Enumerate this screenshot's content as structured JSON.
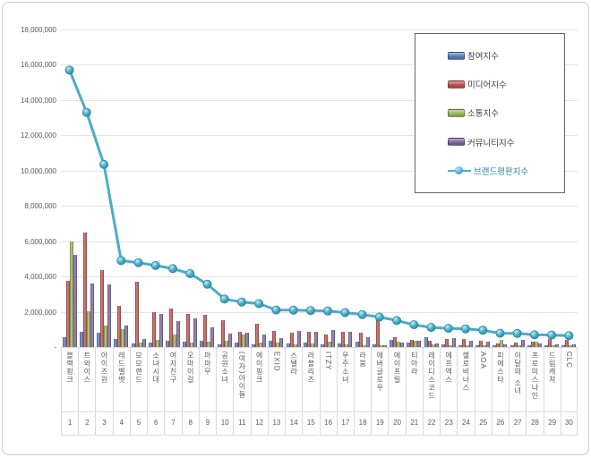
{
  "chart_data": {
    "type": "bar+line",
    "title": "",
    "xlabel": "",
    "ylabel": "",
    "ylim": [
      0,
      18000000
    ],
    "y_tick_interval": 2000000,
    "y_tick_labels": [
      "18,000,000",
      "16,000,000",
      "14,000,000",
      "12,000,000",
      "10,000,000",
      "8,000,000",
      "6,000,000",
      "4,000,000",
      "2,000,000",
      "-"
    ],
    "grid": "horizontal",
    "legend_position": "top-right",
    "categories": [
      "블랙핑크",
      "트와이스",
      "아이즈원",
      "레드벨벳",
      "모모랜드",
      "소녀시대",
      "여자친구",
      "오마이걸",
      "마마무",
      "공원소녀",
      "(여자)아이들",
      "에이핑크",
      "EXID",
      "스텔라",
      "러블리즈",
      "ITZY",
      "우주소녀",
      "라붐",
      "에버글로우",
      "에이프릴",
      "티아라",
      "레이디스코드",
      "에프엑스",
      "헬로비너스",
      "AOA",
      "피에스타",
      "이달의 소녀",
      "프로미스나인",
      "드림캐쳐",
      "CLC"
    ],
    "ranks": [
      "1",
      "2",
      "3",
      "4",
      "5",
      "6",
      "7",
      "8",
      "9",
      "10",
      "11",
      "12",
      "13",
      "14",
      "15",
      "16",
      "17",
      "18",
      "19",
      "20",
      "21",
      "22",
      "23",
      "24",
      "25",
      "26",
      "27",
      "28",
      "29",
      "30"
    ],
    "series": [
      {
        "name": "참여지수",
        "key": "participation-index",
        "type": "bar",
        "color": "#4f81bd",
        "values": [
          550000,
          850000,
          800000,
          450000,
          200000,
          250000,
          350000,
          300000,
          330000,
          170000,
          270000,
          130000,
          350000,
          220000,
          250000,
          170000,
          220000,
          300000,
          150000,
          400000,
          250000,
          550000,
          150000,
          120000,
          100000,
          80000,
          100000,
          80000,
          100000,
          100000
        ]
      },
      {
        "name": "미디어지수",
        "key": "media-index",
        "type": "bar",
        "color": "#c0504d",
        "values": [
          3750000,
          6500000,
          4350000,
          2350000,
          3700000,
          2000000,
          2200000,
          1900000,
          1850000,
          1500000,
          880000,
          1300000,
          920000,
          800000,
          850000,
          720000,
          880000,
          800000,
          1500000,
          550000,
          420000,
          350000,
          450000,
          470000,
          330000,
          200000,
          250000,
          280000,
          450000,
          400000
        ]
      },
      {
        "name": "소통지수",
        "key": "communication-index",
        "type": "bar",
        "color": "#9bbb59",
        "values": [
          6000000,
          2050000,
          1200000,
          1000000,
          250000,
          400000,
          700000,
          250000,
          300000,
          330000,
          720000,
          270000,
          270000,
          130000,
          180000,
          300000,
          170000,
          120000,
          80000,
          300000,
          350000,
          130000,
          100000,
          80000,
          100000,
          400000,
          100000,
          280000,
          80000,
          80000
        ]
      },
      {
        "name": "커뮤니티지수",
        "key": "community-index",
        "type": "bar",
        "color": "#8064a2",
        "values": [
          5200000,
          3600000,
          3550000,
          1200000,
          450000,
          1900000,
          1450000,
          1600000,
          1100000,
          770000,
          800000,
          720000,
          500000,
          900000,
          880000,
          970000,
          850000,
          550000,
          100000,
          250000,
          380000,
          220000,
          500000,
          380000,
          300000,
          170000,
          400000,
          200000,
          150000,
          150000
        ]
      },
      {
        "name": "브랜드평판지수",
        "key": "brand-reputation-index",
        "type": "line",
        "color": "#4bacc6",
        "values": [
          15700000,
          13300000,
          10350000,
          4900000,
          4780000,
          4620000,
          4440000,
          4160000,
          3560000,
          2720000,
          2550000,
          2460000,
          2100000,
          2090000,
          2070000,
          2040000,
          1950000,
          1840000,
          1700000,
          1500000,
          1260000,
          1110000,
          1060000,
          1030000,
          950000,
          780000,
          770000,
          690000,
          680000,
          640000
        ]
      }
    ]
  }
}
